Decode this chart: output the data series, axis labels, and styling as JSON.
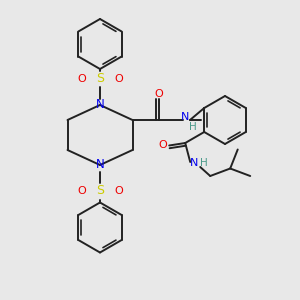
{
  "bg_color": "#e8e8e8",
  "bond_color": "#222222",
  "N_color": "#0000ee",
  "O_color": "#ee0000",
  "S_color": "#cccc00",
  "H_color": "#4a9a8a",
  "lw": 1.4,
  "dbo": 0.055,
  "xlim": [
    0,
    6
  ],
  "ylim": [
    0,
    6
  ]
}
